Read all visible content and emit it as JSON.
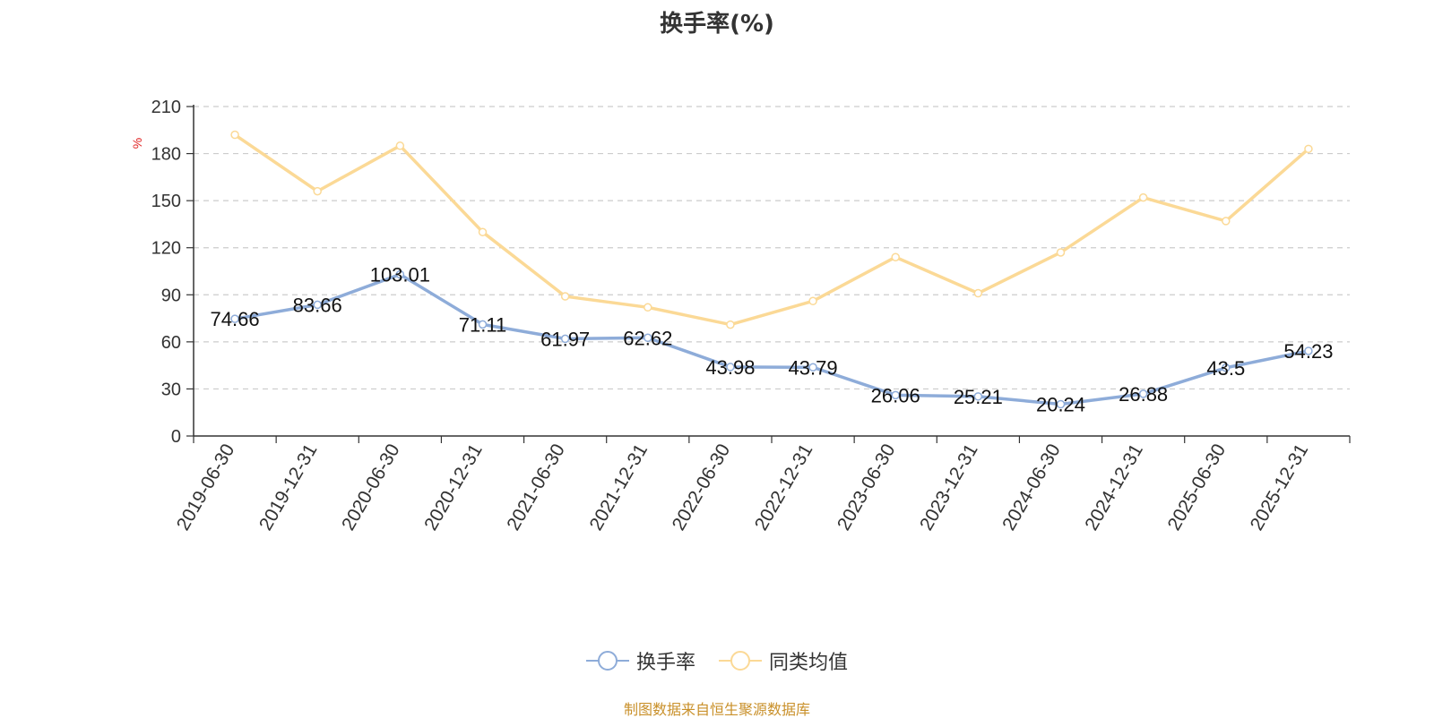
{
  "chart_data": {
    "type": "line",
    "title": "换手率(%)",
    "ylabel": "%",
    "ylim": [
      0,
      210
    ],
    "yticks": [
      0,
      30,
      60,
      90,
      120,
      150,
      180,
      210
    ],
    "grid": true,
    "legend_position": "bottom",
    "categories": [
      "2019-06-30",
      "2019-12-31",
      "2020-06-30",
      "2020-12-31",
      "2021-06-30",
      "2021-12-31",
      "2022-06-30",
      "2022-12-31",
      "2023-06-30",
      "2023-12-31",
      "2024-06-30",
      "2024-12-31",
      "2025-06-30",
      "2025-12-31"
    ],
    "series": [
      {
        "name": "换手率",
        "color": "#8eacd9",
        "show_labels": true,
        "values": [
          74.66,
          83.66,
          103.01,
          71.11,
          61.97,
          62.62,
          43.98,
          43.79,
          26.06,
          25.21,
          20.24,
          26.88,
          43.5,
          54.23
        ]
      },
      {
        "name": "同类均值",
        "color": "#fbd996",
        "show_labels": false,
        "values": [
          192,
          156,
          185,
          130,
          89,
          82,
          71,
          86,
          114,
          91,
          117,
          152,
          137,
          183
        ]
      }
    ]
  },
  "source_text": "制图数据来自恒生聚源数据库"
}
